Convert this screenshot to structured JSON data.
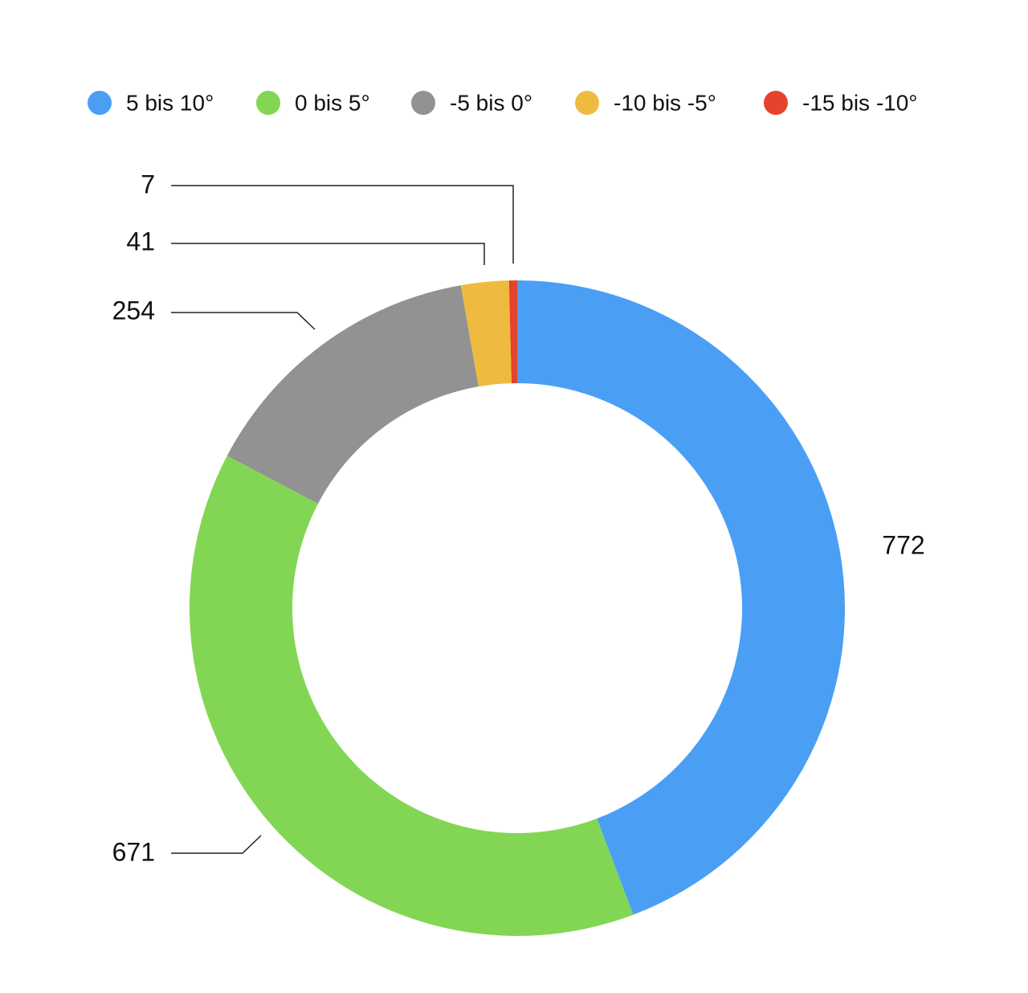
{
  "chart_data": {
    "type": "pie",
    "categories": [
      "5 bis 10°",
      "0 bis 5°",
      "-5 bis 0°",
      "-10 bis -5°",
      "-15 bis -10°"
    ],
    "values": [
      772,
      671,
      254,
      41,
      7
    ],
    "colors": [
      "#4a9ff5",
      "#83d654",
      "#929292",
      "#eebb40",
      "#e5432b"
    ],
    "donut": true
  }
}
